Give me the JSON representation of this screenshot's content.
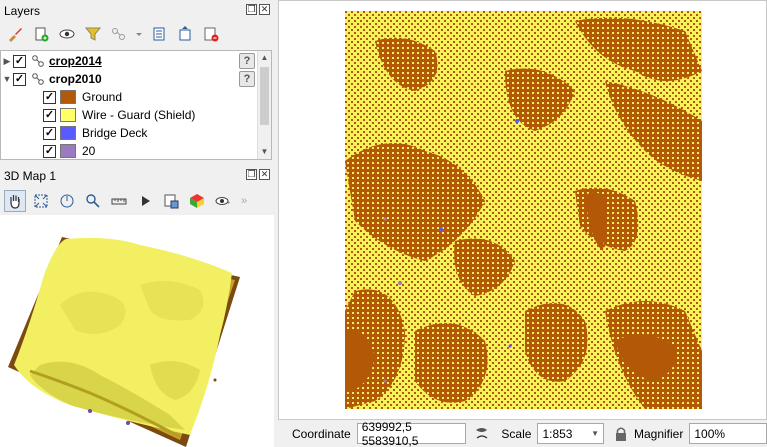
{
  "layers_panel": {
    "title": "Layers",
    "layers": [
      {
        "name": "crop2014",
        "checked": true,
        "expanded": false
      },
      {
        "name": "crop2010",
        "checked": true,
        "expanded": true
      }
    ],
    "legend": [
      {
        "label": "Ground",
        "color": "#b35806",
        "checked": true
      },
      {
        "label": "Wire - Guard (Shield)",
        "color": "#ffff66",
        "checked": true
      },
      {
        "label": "Bridge Deck",
        "color": "#5a5aff",
        "checked": true
      },
      {
        "label": "20",
        "color": "#9b7bbf",
        "checked": true
      }
    ]
  },
  "map3d_panel": {
    "title": "3D Map 1"
  },
  "colors": {
    "ground": "#b35806",
    "vegetation": "#f5f25a",
    "panel_bg": "#f0f0f0"
  },
  "status_bar": {
    "coordinate_label": "Coordinate",
    "coordinate_value": "639992,5  5583910,5",
    "scale_label": "Scale",
    "scale_value": "1:853",
    "magnifier_label": "Magnifier",
    "magnifier_value": "100%"
  }
}
